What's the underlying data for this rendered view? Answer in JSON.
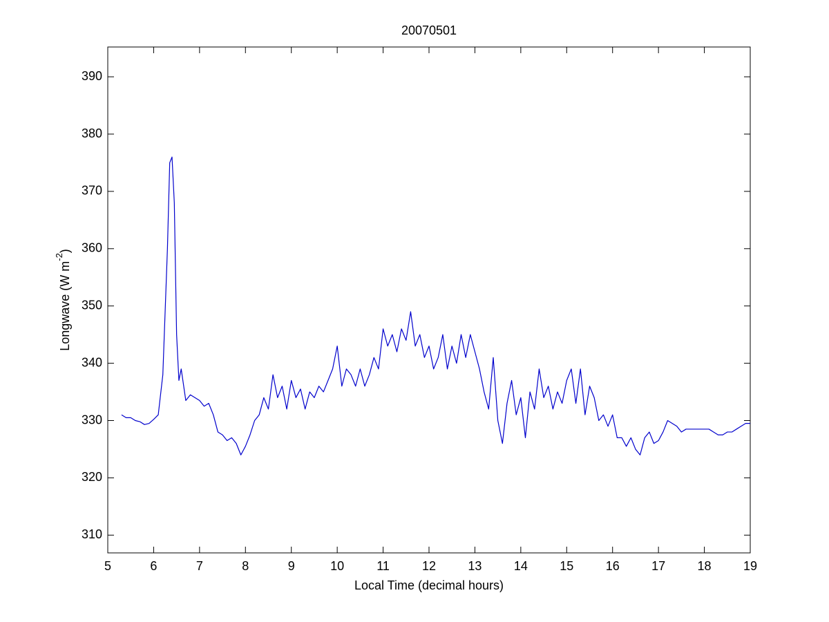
{
  "chart_data": {
    "type": "line",
    "title": "20070501",
    "xlabel": "Local Time (decimal hours)",
    "ylabel": [
      "Longwave (W m",
      "-2",
      ")"
    ],
    "color": "#0000cc",
    "xlim": [
      5,
      19
    ],
    "xticks": [
      5,
      6,
      7,
      8,
      9,
      10,
      11,
      12,
      13,
      14,
      15,
      16,
      17,
      18,
      19
    ],
    "ylim": [
      306.9,
      395.2
    ],
    "yticks": [
      310,
      320,
      330,
      340,
      350,
      360,
      370,
      380,
      390
    ],
    "x": [
      5.3,
      5.4,
      5.5,
      5.6,
      5.7,
      5.8,
      5.9,
      6.0,
      6.1,
      6.2,
      6.3,
      6.35,
      6.4,
      6.45,
      6.5,
      6.55,
      6.6,
      6.7,
      6.8,
      6.9,
      7.0,
      7.1,
      7.2,
      7.3,
      7.4,
      7.5,
      7.6,
      7.7,
      7.8,
      7.9,
      8.0,
      8.1,
      8.2,
      8.3,
      8.4,
      8.5,
      8.6,
      8.7,
      8.8,
      8.9,
      9.0,
      9.1,
      9.2,
      9.3,
      9.4,
      9.5,
      9.6,
      9.7,
      9.8,
      9.9,
      10.0,
      10.1,
      10.2,
      10.3,
      10.4,
      10.5,
      10.6,
      10.7,
      10.8,
      10.9,
      11.0,
      11.1,
      11.2,
      11.3,
      11.4,
      11.5,
      11.6,
      11.7,
      11.8,
      11.9,
      12.0,
      12.1,
      12.2,
      12.3,
      12.4,
      12.5,
      12.6,
      12.7,
      12.8,
      12.9,
      13.0,
      13.1,
      13.2,
      13.3,
      13.4,
      13.5,
      13.6,
      13.7,
      13.8,
      13.9,
      14.0,
      14.1,
      14.2,
      14.3,
      14.4,
      14.5,
      14.6,
      14.7,
      14.8,
      14.9,
      15.0,
      15.1,
      15.2,
      15.3,
      15.4,
      15.5,
      15.6,
      15.7,
      15.8,
      15.9,
      16.0,
      16.1,
      16.2,
      16.3,
      16.4,
      16.5,
      16.6,
      16.7,
      16.8,
      16.9,
      17.0,
      17.1,
      17.2,
      17.3,
      17.4,
      17.5,
      17.6,
      17.7,
      17.8,
      17.9,
      18.0,
      18.1,
      18.2,
      18.3,
      18.4,
      18.5,
      18.6,
      18.7,
      18.8,
      18.9,
      19.0
    ],
    "values": [
      331,
      330.5,
      330.5,
      330,
      329.8,
      329.3,
      329.5,
      330.2,
      331,
      338,
      360,
      375,
      376,
      368,
      345,
      337,
      339,
      333.5,
      334.5,
      334,
      333.5,
      332.5,
      333,
      331,
      328,
      327.5,
      326.5,
      327,
      326,
      324,
      325.5,
      327.5,
      330,
      331,
      334,
      332,
      338,
      334,
      336,
      332,
      337,
      334,
      335.5,
      332,
      335,
      334,
      336,
      335,
      337,
      339,
      343,
      336,
      339,
      338,
      336,
      339,
      336,
      338,
      341,
      339,
      346,
      343,
      345,
      342,
      346,
      344,
      349,
      343,
      345,
      341,
      343,
      339,
      341,
      345,
      339,
      343,
      340,
      345,
      341,
      345,
      342,
      339,
      335,
      332,
      341,
      330,
      326,
      333,
      337,
      331,
      334,
      327,
      335,
      332,
      339,
      334,
      336,
      332,
      335,
      333,
      337,
      339,
      333,
      339,
      331,
      336,
      334,
      330,
      331,
      329,
      331,
      327,
      327,
      325.5,
      327,
      325,
      324,
      327,
      328,
      326,
      326.5,
      328,
      330,
      329.5,
      329,
      328,
      328.5,
      328.5,
      328.5,
      328.5,
      328.5,
      328.5,
      328,
      327.5,
      327.5,
      328,
      328,
      328.5,
      329,
      329.5,
      329.5
    ]
  }
}
